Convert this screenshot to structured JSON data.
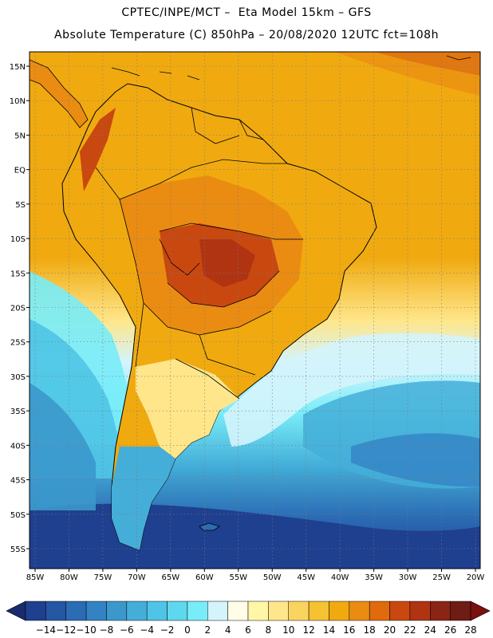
{
  "header": {
    "line1": "CPTEC/INPE/MCT –  Eta Model 15km – GFS",
    "line2": "Absolute Temperature (C) 850hPa – 20/08/2020 12UTC fct=108h"
  },
  "map": {
    "lon_ticks": [
      "85W",
      "80W",
      "75W",
      "70W",
      "65W",
      "60W",
      "55W",
      "50W",
      "45W",
      "40W",
      "35W",
      "30W",
      "25W",
      "20W"
    ],
    "lat_ticks": [
      "15N",
      "10N",
      "5N",
      "EQ",
      "5S",
      "10S",
      "15S",
      "20S",
      "25S",
      "30S",
      "35S",
      "40S",
      "45S",
      "50S",
      "55S"
    ],
    "grid": "dotted"
  },
  "colorbar": {
    "labels": [
      "-14",
      "-12",
      "-10",
      "-8",
      "-6",
      "-4",
      "-2",
      "0",
      "2",
      "4",
      "6",
      "8",
      "10",
      "12",
      "14",
      "16",
      "18",
      "20",
      "22",
      "24",
      "26",
      "28"
    ],
    "colors": [
      "#1f3f8f",
      "#2557a3",
      "#2b6cb4",
      "#3383c4",
      "#3b98cc",
      "#44aed8",
      "#4fc4e6",
      "#5dd8ee",
      "#78ecf8",
      "#d4f4fc",
      "#fffce8",
      "#fff6a6",
      "#ffe68a",
      "#fbd460",
      "#f4c232",
      "#f0aa10",
      "#ea8c12",
      "#e06a0c",
      "#c84810",
      "#b03412",
      "#8a2414",
      "#6e1c14"
    ]
  }
}
